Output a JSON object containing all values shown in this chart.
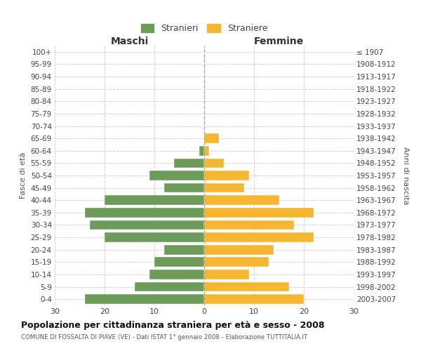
{
  "age_groups": [
    "0-4",
    "5-9",
    "10-14",
    "15-19",
    "20-24",
    "25-29",
    "30-34",
    "35-39",
    "40-44",
    "45-49",
    "50-54",
    "55-59",
    "60-64",
    "65-69",
    "70-74",
    "75-79",
    "80-84",
    "85-89",
    "90-94",
    "95-99",
    "100+"
  ],
  "birth_years": [
    "2003-2007",
    "1998-2002",
    "1993-1997",
    "1988-1992",
    "1983-1987",
    "1978-1982",
    "1973-1977",
    "1968-1972",
    "1963-1967",
    "1958-1962",
    "1953-1957",
    "1948-1952",
    "1943-1947",
    "1938-1942",
    "1933-1937",
    "1928-1932",
    "1923-1927",
    "1918-1922",
    "1913-1917",
    "1908-1912",
    "≤ 1907"
  ],
  "males": [
    24,
    14,
    11,
    10,
    8,
    20,
    23,
    24,
    20,
    8,
    11,
    6,
    1,
    0,
    0,
    0,
    0,
    0,
    0,
    0,
    0
  ],
  "females": [
    20,
    17,
    9,
    13,
    14,
    22,
    18,
    22,
    15,
    8,
    9,
    4,
    1,
    3,
    0,
    0,
    0,
    0,
    0,
    0,
    0
  ],
  "male_color": "#6d9b5a",
  "female_color": "#f5b731",
  "grid_color": "#cccccc",
  "bg_color": "#ffffff",
  "bar_edge_color": "#ffffff",
  "title": "Popolazione per cittadinanza straniera per età e sesso - 2008",
  "subtitle": "COMUNE DI FOSSALTA DI PIAVE (VE) - Dati ISTAT 1° gennaio 2008 - Elaborazione TUTTITALIA.IT",
  "xlabel_left": "Maschi",
  "xlabel_right": "Femmine",
  "ylabel_left": "Fasce di età",
  "ylabel_right": "Anni di nascita",
  "legend_male": "Stranieri",
  "legend_female": "Straniere",
  "xlim": 30
}
